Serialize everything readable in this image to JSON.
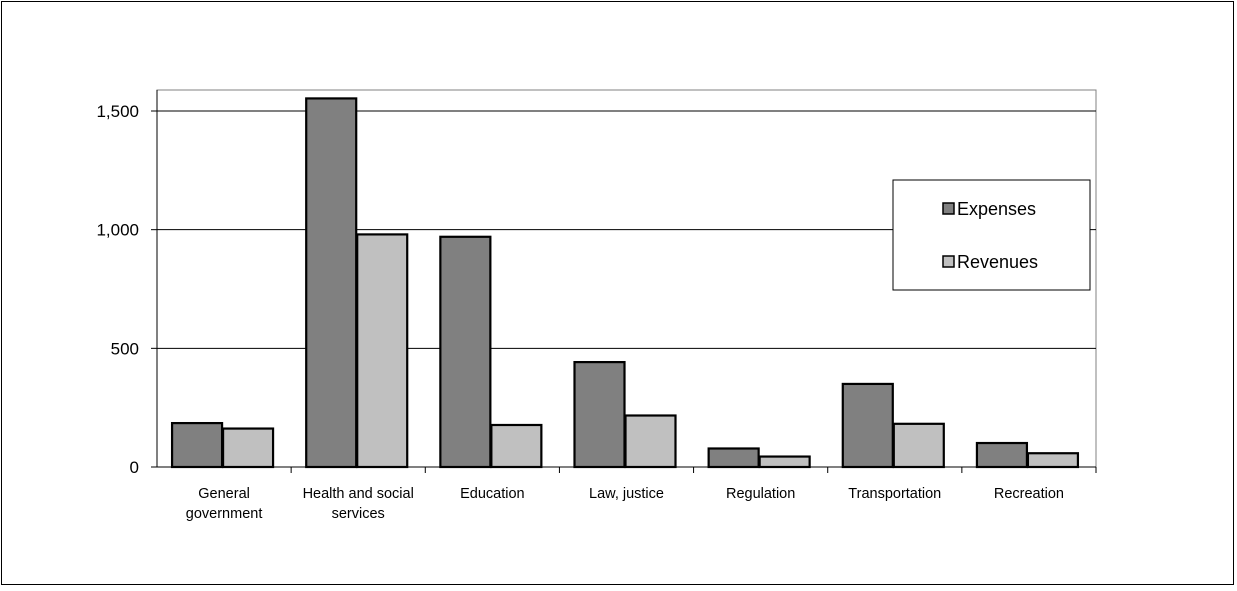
{
  "chart_data": {
    "type": "bar",
    "title": "",
    "xlabel": "",
    "ylabel": "",
    "categories": [
      [
        "General",
        "government"
      ],
      [
        "Health and social",
        "services"
      ],
      [
        "Education"
      ],
      [
        "Law, justice"
      ],
      [
        "Regulation"
      ],
      [
        "Transportation"
      ],
      [
        "Recreation"
      ]
    ],
    "series": [
      {
        "name": "Expenses",
        "values": [
          185,
          1553,
          970,
          442,
          78,
          350,
          101
        ],
        "color": "#808080"
      },
      {
        "name": "Revenues",
        "values": [
          162,
          980,
          177,
          217,
          44,
          182,
          58
        ],
        "color": "#c0c0c0"
      }
    ],
    "ylim": [
      0,
      1500
    ],
    "yticks": [
      0,
      500,
      1000,
      1500
    ],
    "ytick_labels": [
      "0",
      "500",
      "1,000",
      "1,500"
    ],
    "grid": true,
    "legend": "right"
  }
}
